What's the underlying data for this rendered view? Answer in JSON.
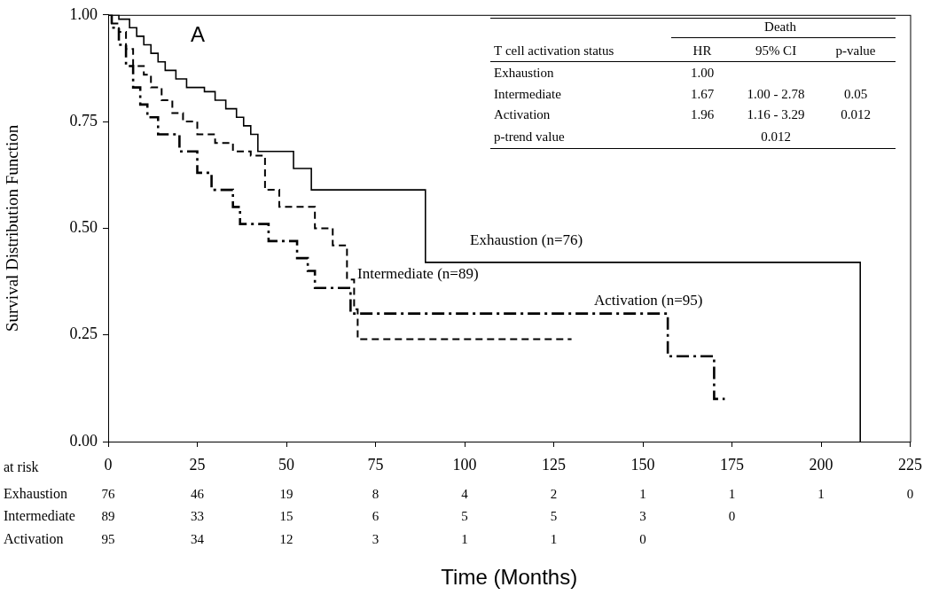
{
  "chart_data": {
    "type": "line",
    "panel_label": "A",
    "x_label": "Time (Months)",
    "y_label": "Survival Distribution Function",
    "xlim": [
      0,
      225
    ],
    "xticks": [
      0,
      25,
      50,
      75,
      100,
      125,
      150,
      175,
      200,
      225
    ],
    "ylim": [
      0,
      1
    ],
    "yticks": [
      {
        "value": 0,
        "label": "0.00"
      },
      {
        "value": 0.25,
        "label": "0.25"
      },
      {
        "value": 0.5,
        "label": "0.50"
      },
      {
        "value": 0.75,
        "label": "0.75"
      },
      {
        "value": 1,
        "label": "1.00"
      }
    ],
    "grid": false,
    "series": [
      {
        "name": "Exhaustion",
        "color": "#000000",
        "line_style": "solid",
        "x": [
          0,
          3,
          6,
          8,
          10,
          12,
          14,
          16,
          19,
          22,
          27,
          30,
          33,
          36,
          38,
          40,
          42,
          52,
          57,
          89,
          211
        ],
        "values": [
          1.0,
          0.99,
          0.97,
          0.95,
          0.93,
          0.91,
          0.89,
          0.87,
          0.85,
          0.83,
          0.82,
          0.8,
          0.78,
          0.76,
          0.74,
          0.72,
          0.68,
          0.64,
          0.59,
          0.42,
          0.0
        ]
      },
      {
        "name": "Intermediate",
        "color": "#000000",
        "line_style": "dashed",
        "x": [
          0,
          1,
          3,
          5,
          7,
          10,
          12,
          15,
          18,
          21,
          25,
          30,
          35,
          40,
          44,
          48,
          58,
          63,
          67,
          69,
          70,
          130
        ],
        "values": [
          1.0,
          0.98,
          0.96,
          0.92,
          0.88,
          0.86,
          0.83,
          0.8,
          0.77,
          0.75,
          0.72,
          0.7,
          0.68,
          0.67,
          0.59,
          0.55,
          0.5,
          0.46,
          0.38,
          0.31,
          0.24,
          0.24
        ]
      },
      {
        "name": "Activation",
        "color": "#000000",
        "line_style": "dashdot",
        "x": [
          0,
          1,
          3,
          5,
          7,
          9,
          11,
          14,
          20,
          25,
          29,
          35,
          37,
          45,
          53,
          56,
          58,
          68,
          157,
          170,
          173
        ],
        "values": [
          1.0,
          0.97,
          0.93,
          0.88,
          0.83,
          0.79,
          0.76,
          0.72,
          0.68,
          0.63,
          0.59,
          0.55,
          0.51,
          0.47,
          0.43,
          0.4,
          0.36,
          0.3,
          0.2,
          0.1,
          0.1
        ]
      }
    ],
    "annotations": [
      "Exhaustion (n=76)",
      "Intermediate (n=89)",
      "Activation (n=95)"
    ],
    "hr_table": {
      "header": "Death",
      "columns": [
        "T cell activation status",
        "HR",
        "95% CI",
        "p-value"
      ],
      "rows": [
        [
          "Exhaustion",
          "1.00"
        ],
        [
          "Intermediate",
          "1.67",
          "1.00 - 2.78",
          "0.05"
        ],
        [
          "Activation",
          "1.96",
          "1.16 - 3.29",
          "0.012"
        ]
      ],
      "p_trend": {
        "label": "p-trend value",
        "value": "0.012"
      }
    },
    "at_risk": {
      "label": "at risk",
      "times": [
        0,
        25,
        50,
        75,
        100,
        125,
        150,
        175,
        200,
        225
      ],
      "rows": [
        {
          "name": "Exhaustion",
          "counts": [
            76,
            46,
            19,
            8,
            4,
            2,
            1,
            1,
            1,
            0
          ]
        },
        {
          "name": "Intermediate",
          "counts": [
            89,
            33,
            15,
            6,
            5,
            5,
            3,
            0,
            null,
            null
          ]
        },
        {
          "name": "Activation",
          "counts": [
            95,
            34,
            12,
            3,
            1,
            1,
            0,
            null,
            null,
            null
          ]
        }
      ]
    }
  }
}
